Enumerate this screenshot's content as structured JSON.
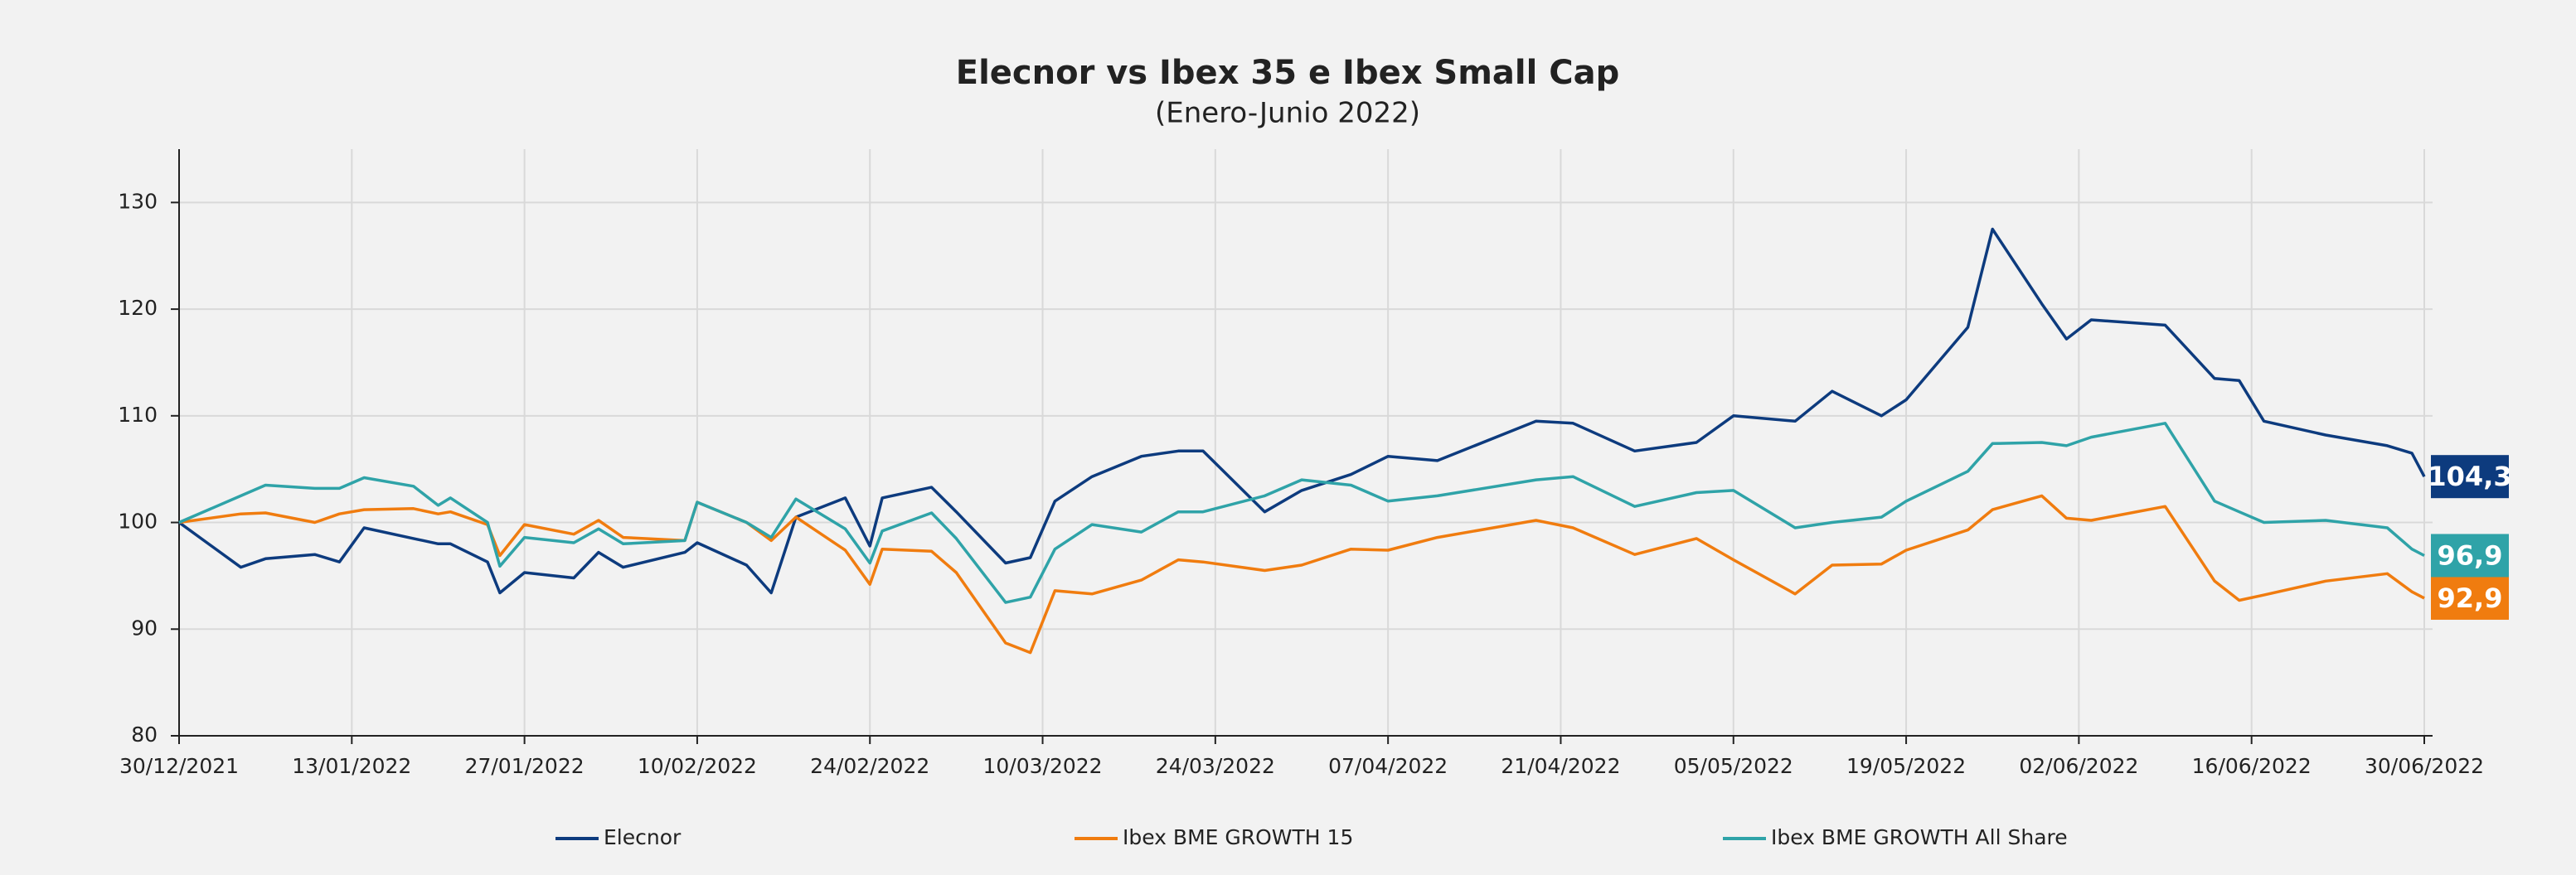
{
  "chart_data": {
    "type": "line",
    "title": "Elecnor vs Ibex 35 e Ibex Small Cap",
    "subtitle": "(Enero-Junio 2022)",
    "x": [
      "30/12/2021",
      "04/01/2022",
      "06/01/2022",
      "10/01/2022",
      "12/01/2022",
      "14/01/2022",
      "18/01/2022",
      "20/01/2022",
      "21/01/2022",
      "24/01/2022",
      "25/01/2022",
      "27/01/2022",
      "31/01/2022",
      "02/02/2022",
      "04/02/2022",
      "09/02/2022",
      "10/02/2022",
      "14/02/2022",
      "16/02/2022",
      "18/02/2022",
      "22/02/2022",
      "24/02/2022",
      "25/02/2022",
      "01/03/2022",
      "03/03/2022",
      "07/03/2022",
      "09/03/2022",
      "11/03/2022",
      "14/03/2022",
      "18/03/2022",
      "21/03/2022",
      "23/03/2022",
      "28/03/2022",
      "31/03/2022",
      "04/04/2022",
      "07/04/2022",
      "11/04/2022",
      "19/04/2022",
      "22/04/2022",
      "27/04/2022",
      "02/05/2022",
      "05/05/2022",
      "10/05/2022",
      "13/05/2022",
      "17/05/2022",
      "19/05/2022",
      "24/05/2022",
      "26/05/2022",
      "30/05/2022",
      "01/06/2022",
      "03/06/2022",
      "09/06/2022",
      "13/06/2022",
      "15/06/2022",
      "17/06/2022",
      "22/06/2022",
      "27/06/2022",
      "29/06/2022",
      "30/06/2022"
    ],
    "series": [
      {
        "name": "Elecnor",
        "color": "#0d3b7e",
        "values": [
          100,
          95.8,
          96.6,
          97.0,
          96.3,
          99.5,
          98.5,
          98.0,
          98.0,
          96.3,
          93.4,
          95.3,
          94.8,
          97.2,
          95.8,
          97.2,
          98.1,
          96.0,
          93.4,
          100.5,
          102.3,
          97.8,
          102.3,
          103.3,
          101.0,
          96.2,
          96.7,
          102.0,
          104.3,
          106.2,
          106.7,
          106.7,
          101.0,
          103.0,
          104.5,
          106.2,
          105.8,
          109.5,
          109.3,
          106.7,
          107.5,
          110.0,
          109.5,
          112.3,
          110.0,
          111.5,
          118.3,
          127.5,
          120.5,
          117.2,
          119.0,
          118.5,
          113.5,
          113.3,
          109.5,
          108.2,
          107.2,
          106.5,
          104.3
        ],
        "value_labels": [
          null,
          null,
          null,
          null,
          null,
          null,
          null,
          null,
          null,
          null,
          null,
          null,
          null,
          null,
          null,
          null,
          null,
          null,
          null,
          null,
          null,
          null,
          null,
          null,
          null,
          null,
          null,
          null,
          null,
          null,
          null,
          null,
          null,
          null,
          null,
          null,
          null,
          null,
          null,
          null,
          null,
          null,
          null,
          null,
          null,
          null,
          null,
          null,
          null,
          null,
          null,
          null,
          null,
          null,
          null,
          null,
          null,
          null,
          "104,3"
        ]
      },
      {
        "name": "Ibex BME GROWTH 15",
        "color": "#f07c0f",
        "values": [
          100,
          100.8,
          100.9,
          100.0,
          100.8,
          101.2,
          101.3,
          100.8,
          101.0,
          99.8,
          96.9,
          99.8,
          98.9,
          100.2,
          98.6,
          98.3,
          101.9,
          100.0,
          98.3,
          100.5,
          97.4,
          94.2,
          97.5,
          97.3,
          95.3,
          88.7,
          87.8,
          93.6,
          93.3,
          94.6,
          96.5,
          96.3,
          95.5,
          96.0,
          97.5,
          97.4,
          98.6,
          100.2,
          99.5,
          97.0,
          98.5,
          96.5,
          93.3,
          96.0,
          96.1,
          97.4,
          99.3,
          101.2,
          102.5,
          100.4,
          100.2,
          101.5,
          94.5,
          92.7,
          93.2,
          94.5,
          95.2,
          93.5,
          92.9
        ],
        "value_labels": [
          null,
          null,
          null,
          null,
          null,
          null,
          null,
          null,
          null,
          null,
          null,
          null,
          null,
          null,
          null,
          null,
          null,
          null,
          null,
          null,
          null,
          null,
          null,
          null,
          null,
          null,
          null,
          null,
          null,
          null,
          null,
          null,
          null,
          null,
          null,
          null,
          null,
          null,
          null,
          null,
          null,
          null,
          null,
          null,
          null,
          null,
          null,
          null,
          null,
          null,
          null,
          null,
          null,
          null,
          null,
          null,
          null,
          null,
          "92,9"
        ]
      },
      {
        "name": "Ibex BME GROWTH All Share",
        "color": "#2fa3a8",
        "values": [
          100,
          102.5,
          103.5,
          103.2,
          103.2,
          104.2,
          103.4,
          101.6,
          102.3,
          100,
          95.9,
          98.6,
          98.1,
          99.4,
          98.0,
          98.3,
          101.9,
          100,
          98.6,
          102.2,
          99.4,
          96.2,
          99.2,
          100.9,
          98.5,
          92.5,
          93.0,
          97.5,
          99.8,
          99.1,
          101.0,
          101.0,
          102.5,
          104.0,
          103.5,
          102.0,
          102.5,
          104.0,
          104.3,
          101.5,
          102.8,
          103.0,
          99.5,
          100.0,
          100.5,
          102.0,
          104.8,
          107.4,
          107.5,
          107.2,
          108.0,
          109.3,
          102.0,
          101.0,
          100.0,
          100.2,
          99.5,
          97.5,
          96.9
        ],
        "value_labels": [
          null,
          null,
          null,
          null,
          null,
          null,
          null,
          null,
          null,
          null,
          null,
          null,
          null,
          null,
          null,
          null,
          null,
          null,
          null,
          null,
          null,
          null,
          null,
          null,
          null,
          null,
          null,
          null,
          null,
          null,
          null,
          null,
          null,
          null,
          null,
          null,
          null,
          null,
          null,
          null,
          null,
          null,
          null,
          null,
          null,
          null,
          null,
          null,
          null,
          null,
          null,
          null,
          null,
          null,
          null,
          null,
          null,
          null,
          "96,9"
        ]
      }
    ],
    "xlim": [
      "30/12/2021",
      "30/06/2022"
    ],
    "xticks": [
      "30/12/2021",
      "13/01/2022",
      "27/01/2022",
      "10/02/2022",
      "24/02/2022",
      "10/03/2022",
      "24/03/2022",
      "07/04/2022",
      "21/04/2022",
      "05/05/2022",
      "19/05/2022",
      "02/06/2022",
      "16/06/2022",
      "30/06/2022"
    ],
    "ylim": [
      80,
      135
    ],
    "yticks": [
      80,
      90,
      100,
      110,
      120,
      130
    ],
    "grid": true,
    "legend": "bottom"
  }
}
